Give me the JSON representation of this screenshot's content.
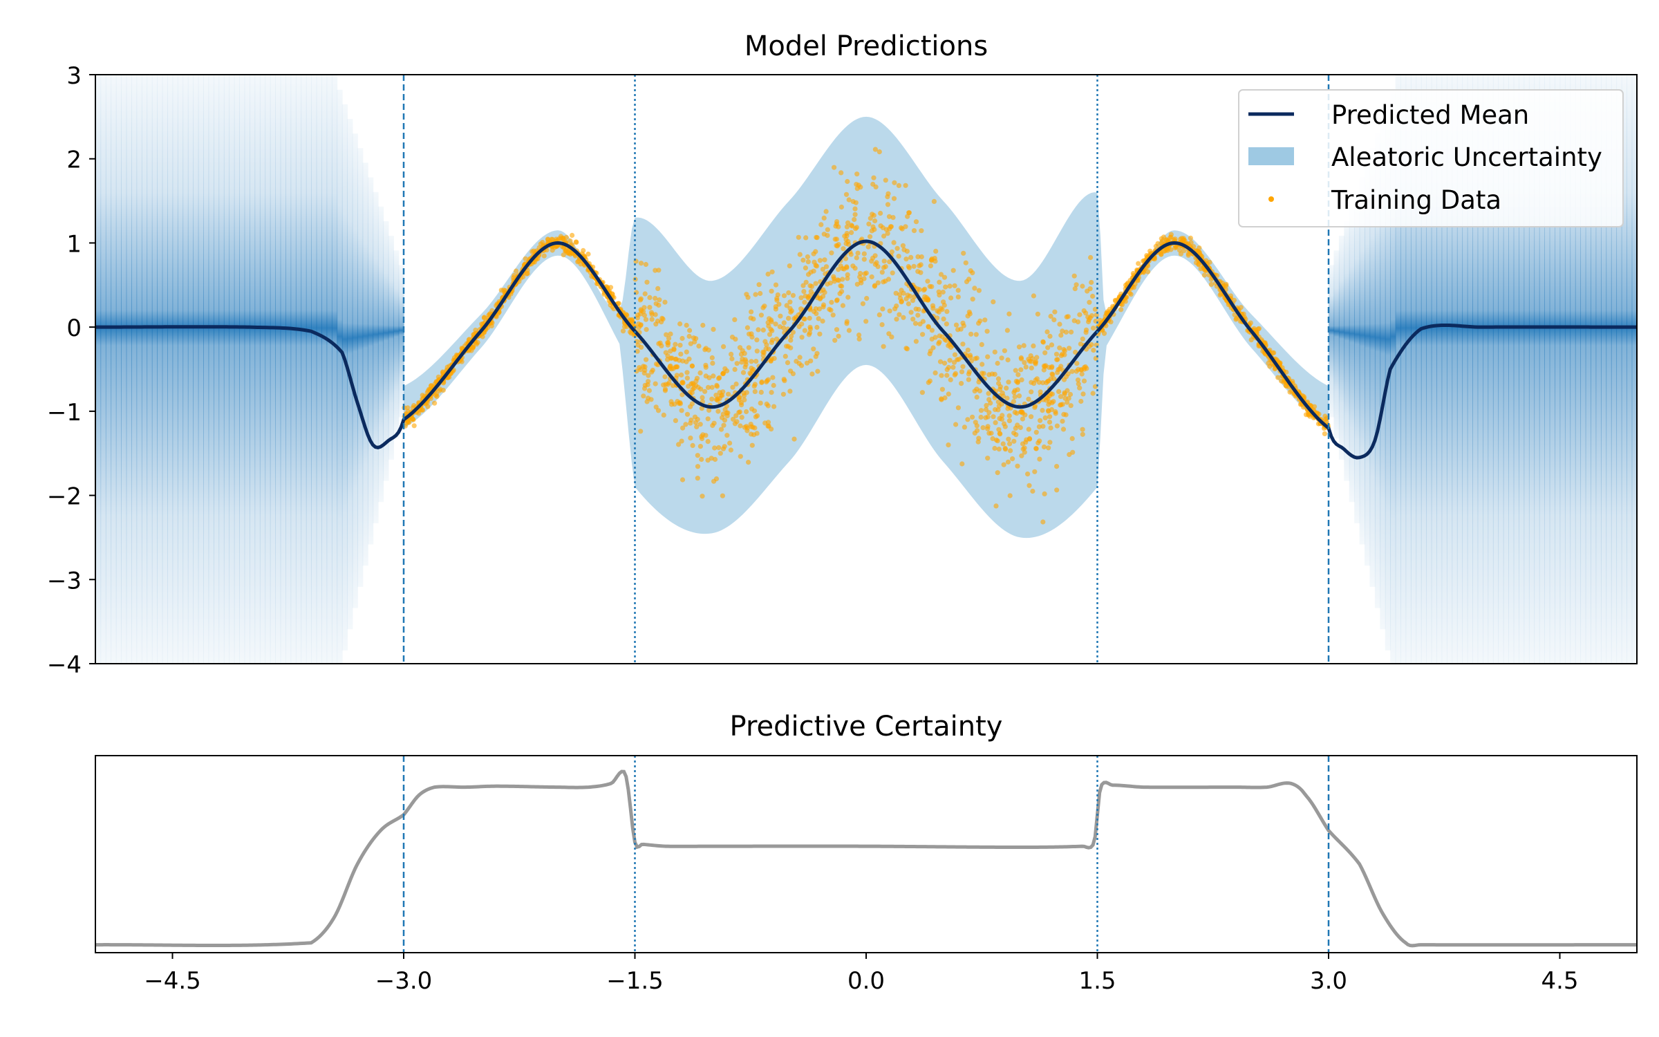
{
  "colors": {
    "mean": "#0b2a5e",
    "aleatoric": "#9ec9e3",
    "epistemic": "#1b74b8",
    "training": "#ffa500",
    "certainty": "#999999",
    "guide": "#1f77b4"
  },
  "chart_data": [
    {
      "type": "line",
      "title": "Model Predictions",
      "xlim": [
        -5,
        5
      ],
      "ylim": [
        -4,
        3
      ],
      "yticks": [
        -4,
        -3,
        -2,
        -1,
        0,
        1,
        2,
        3
      ],
      "ytick_labels": [
        "−4",
        "−3",
        "−2",
        "−1",
        "0",
        "1",
        "2",
        "3"
      ],
      "legend_position": "top-right",
      "legend": [
        "Predicted Mean",
        "Aleatoric Uncertainty",
        "Training Data"
      ],
      "vertical_lines": [
        {
          "x": -3.0,
          "style": "dashed"
        },
        {
          "x": -1.5,
          "style": "dotted"
        },
        {
          "x": 1.5,
          "style": "dotted"
        },
        {
          "x": 3.0,
          "style": "dashed"
        }
      ],
      "series": [
        {
          "name": "Predicted Mean",
          "kind": "line",
          "x": [
            -5.0,
            -4.0,
            -3.6,
            -3.4,
            -3.3,
            -3.2,
            -3.1,
            -3.0,
            -2.5,
            -2.0,
            -1.5,
            -1.0,
            -0.5,
            0.0,
            0.5,
            1.0,
            1.5,
            2.0,
            2.5,
            3.0,
            3.1,
            3.2,
            3.3,
            3.4,
            3.6,
            4.0,
            5.0
          ],
          "y": [
            0.0,
            0.0,
            -0.05,
            -0.3,
            -0.9,
            -1.4,
            -1.35,
            -1.1,
            -0.05,
            1.0,
            -0.05,
            -0.95,
            -0.05,
            1.02,
            -0.05,
            -0.95,
            -0.05,
            1.0,
            -0.05,
            -1.2,
            -1.45,
            -1.55,
            -1.35,
            -0.5,
            -0.02,
            0.0,
            0.0
          ]
        },
        {
          "name": "Aleatoric Uncertainty",
          "kind": "band",
          "x": [
            -3.0,
            -2.5,
            -2.0,
            -1.6,
            -1.5,
            -1.0,
            -0.5,
            0.0,
            0.5,
            1.0,
            1.5,
            1.55,
            2.0,
            2.5,
            3.0
          ],
          "y_low": [
            -1.2,
            -0.25,
            0.85,
            -0.2,
            -1.9,
            -2.45,
            -1.6,
            -0.45,
            -1.6,
            -2.5,
            -1.9,
            -0.25,
            0.85,
            -0.25,
            -1.2
          ],
          "y_high": [
            -0.7,
            0.15,
            1.15,
            0.2,
            1.3,
            0.55,
            1.5,
            2.5,
            1.5,
            0.55,
            1.6,
            0.15,
            1.15,
            0.15,
            -0.7
          ]
        },
        {
          "name": "Training Data",
          "kind": "scatter",
          "x_range": [
            -3.0,
            3.0
          ],
          "noise_std": {
            "outer": 0.05,
            "inner": 0.45
          }
        }
      ]
    },
    {
      "type": "line",
      "title": "Predictive Certainty",
      "xlim": [
        -5,
        5
      ],
      "xticks": [
        -4.5,
        -3.0,
        -1.5,
        0.0,
        1.5,
        3.0,
        4.5
      ],
      "xtick_labels": [
        "−4.5",
        "−3.0",
        "−1.5",
        "0.0",
        "1.5",
        "3.0",
        "4.5"
      ],
      "ylim": [
        0,
        1
      ],
      "vertical_lines": [
        {
          "x": -3.0,
          "style": "dashed"
        },
        {
          "x": -1.5,
          "style": "dotted"
        },
        {
          "x": 1.5,
          "style": "dotted"
        },
        {
          "x": 3.0,
          "style": "dashed"
        }
      ],
      "series": [
        {
          "name": "certainty",
          "kind": "line",
          "x": [
            -5.0,
            -3.6,
            -3.45,
            -3.3,
            -3.15,
            -3.0,
            -2.9,
            -2.8,
            -2.6,
            -2.4,
            -2.0,
            -1.8,
            -1.65,
            -1.58,
            -1.55,
            -1.5,
            -1.45,
            -1.3,
            -1.0,
            0.0,
            1.0,
            1.4,
            1.48,
            1.52,
            1.6,
            1.8,
            2.4,
            2.6,
            2.75,
            2.85,
            3.0,
            3.2,
            3.35,
            3.5,
            3.6,
            5.0
          ],
          "y": [
            0.04,
            0.05,
            0.18,
            0.45,
            0.62,
            0.7,
            0.8,
            0.84,
            0.84,
            0.845,
            0.84,
            0.84,
            0.86,
            0.92,
            0.86,
            0.56,
            0.55,
            0.54,
            0.54,
            0.54,
            0.535,
            0.54,
            0.56,
            0.84,
            0.85,
            0.84,
            0.84,
            0.84,
            0.86,
            0.8,
            0.62,
            0.45,
            0.2,
            0.05,
            0.04,
            0.04
          ]
        }
      ]
    }
  ]
}
